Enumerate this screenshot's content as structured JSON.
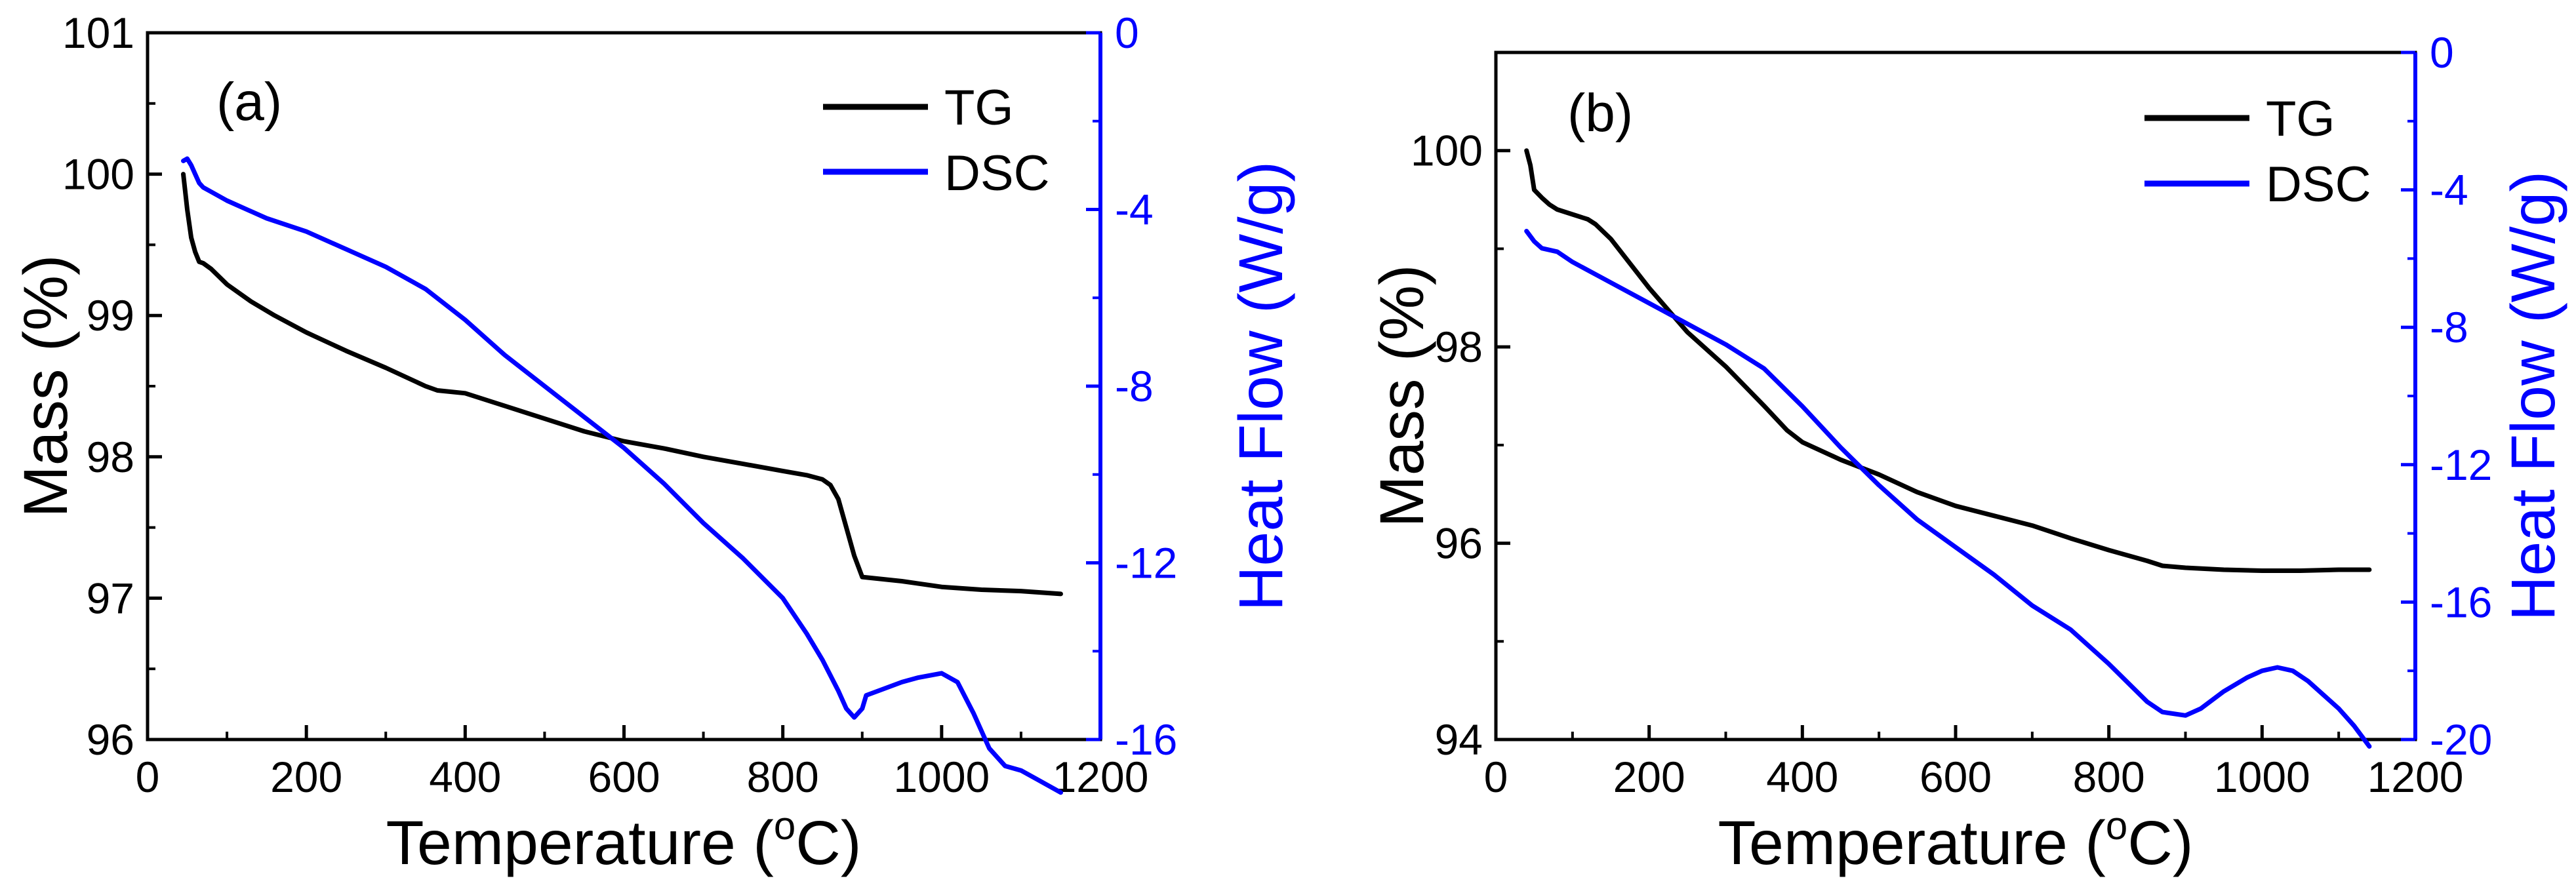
{
  "chart_data": [
    {
      "type": "line",
      "panel_label": "(a)",
      "xlabel_main": "Temperature (",
      "xlabel_sup": "o",
      "xlabel_end": "C)",
      "ylabel": "Mass (%)",
      "y2label": "Heat Flow (W/g)",
      "xlim": [
        0,
        1200
      ],
      "ylim": [
        96,
        101
      ],
      "y2lim": [
        -16,
        0
      ],
      "x_ticks": [
        0,
        200,
        400,
        600,
        800,
        1000,
        1200
      ],
      "y_ticks": [
        96,
        97,
        98,
        99,
        100,
        101
      ],
      "y2_ticks": [
        0,
        -4,
        -8,
        -12,
        -16
      ],
      "legend": [
        "TG",
        "DSC"
      ],
      "legend_position": "top-right",
      "series": [
        {
          "name": "TG",
          "axis": "left",
          "color": "#000000",
          "x": [
            45,
            50,
            55,
            60,
            65,
            70,
            80,
            100,
            130,
            160,
            200,
            250,
            300,
            350,
            365,
            400,
            450,
            500,
            550,
            600,
            650,
            700,
            750,
            800,
            830,
            850,
            860,
            870,
            880,
            890,
            900,
            950,
            1000,
            1050,
            1100,
            1150
          ],
          "y": [
            100.0,
            99.75,
            99.55,
            99.45,
            99.38,
            99.37,
            99.33,
            99.22,
            99.1,
            99.0,
            98.88,
            98.75,
            98.63,
            98.5,
            98.47,
            98.45,
            98.36,
            98.27,
            98.18,
            98.11,
            98.06,
            98.0,
            97.95,
            97.9,
            97.87,
            97.84,
            97.8,
            97.7,
            97.5,
            97.3,
            97.15,
            97.12,
            97.08,
            97.06,
            97.05,
            97.03
          ]
        },
        {
          "name": "DSC",
          "axis": "right",
          "color": "#0000ff",
          "x": [
            45,
            50,
            55,
            60,
            65,
            70,
            80,
            100,
            150,
            200,
            250,
            300,
            350,
            400,
            450,
            500,
            550,
            600,
            650,
            700,
            750,
            800,
            830,
            850,
            870,
            880,
            890,
            900,
            905,
            920,
            950,
            970,
            1000,
            1020,
            1040,
            1060,
            1080,
            1100,
            1120,
            1150
          ],
          "y": [
            -2.9,
            -2.85,
            -3.0,
            -3.2,
            -3.4,
            -3.5,
            -3.6,
            -3.8,
            -4.2,
            -4.5,
            -4.9,
            -5.3,
            -5.8,
            -6.5,
            -7.3,
            -8.0,
            -8.7,
            -9.4,
            -10.2,
            -11.1,
            -11.9,
            -12.8,
            -13.6,
            -14.2,
            -14.9,
            -15.3,
            -15.5,
            -15.3,
            -15.0,
            -14.9,
            -14.7,
            -14.6,
            -14.5,
            -14.7,
            -15.4,
            -16.2,
            -16.6,
            -16.7,
            -16.9,
            -17.2
          ]
        }
      ]
    },
    {
      "type": "line",
      "panel_label": "(b)",
      "xlabel_main": "Temperature (",
      "xlabel_sup": "o",
      "xlabel_end": "C)",
      "ylabel": "Mass (%)",
      "y2label": "Heat Flow (W/g)",
      "xlim": [
        0,
        1200
      ],
      "ylim": [
        94,
        101
      ],
      "y2lim": [
        -20,
        0
      ],
      "x_ticks": [
        0,
        200,
        400,
        600,
        800,
        1000,
        1200
      ],
      "y_ticks": [
        94,
        96,
        98,
        100
      ],
      "y2_ticks": [
        0,
        -4,
        -8,
        -12,
        -16,
        -20
      ],
      "legend": [
        "TG",
        "DSC"
      ],
      "legend_position": "top-right",
      "series": [
        {
          "name": "TG",
          "axis": "left",
          "color": "#000000",
          "x": [
            40,
            45,
            50,
            60,
            70,
            80,
            100,
            120,
            130,
            150,
            200,
            250,
            300,
            350,
            380,
            400,
            450,
            500,
            550,
            600,
            650,
            700,
            750,
            800,
            850,
            870,
            900,
            950,
            1000,
            1050,
            1100,
            1140
          ],
          "y": [
            100.0,
            99.85,
            99.6,
            99.52,
            99.45,
            99.4,
            99.35,
            99.3,
            99.25,
            99.1,
            98.6,
            98.15,
            97.8,
            97.4,
            97.15,
            97.03,
            96.85,
            96.7,
            96.52,
            96.38,
            96.28,
            96.18,
            96.05,
            95.93,
            95.82,
            95.77,
            95.75,
            95.73,
            95.72,
            95.72,
            95.73,
            95.73
          ]
        },
        {
          "name": "DSC",
          "axis": "right",
          "color": "#0000ff",
          "x": [
            40,
            50,
            60,
            80,
            100,
            150,
            200,
            250,
            300,
            350,
            400,
            450,
            500,
            550,
            600,
            650,
            700,
            750,
            800,
            850,
            870,
            900,
            920,
            950,
            980,
            1000,
            1020,
            1040,
            1060,
            1080,
            1100,
            1120,
            1140
          ],
          "y": [
            -5.2,
            -5.5,
            -5.7,
            -5.8,
            -6.1,
            -6.7,
            -7.3,
            -7.9,
            -8.5,
            -9.2,
            -10.3,
            -11.5,
            -12.6,
            -13.6,
            -14.4,
            -15.2,
            -16.1,
            -16.8,
            -17.8,
            -18.9,
            -19.2,
            -19.3,
            -19.1,
            -18.6,
            -18.2,
            -18.0,
            -17.9,
            -18.0,
            -18.3,
            -18.7,
            -19.1,
            -19.6,
            -20.2
          ]
        }
      ]
    }
  ]
}
